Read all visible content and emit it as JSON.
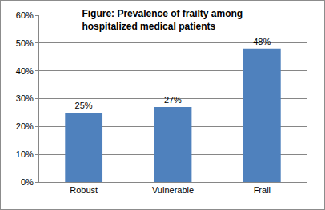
{
  "chart_data": {
    "type": "bar",
    "title": "Figure: Prevalence of frailty among\nhospitalized medical patients",
    "categories": [
      "Robust",
      "Vulnerable",
      "Frail"
    ],
    "values": [
      25,
      27,
      48
    ],
    "value_labels": [
      "25%",
      "27%",
      "48%"
    ],
    "color": "#4f81bd",
    "ylim": [
      0,
      60
    ],
    "yticks": [
      {
        "value": 0,
        "label": "0%"
      },
      {
        "value": 10,
        "label": "10%"
      },
      {
        "value": 20,
        "label": "20%"
      },
      {
        "value": 30,
        "label": "30%"
      },
      {
        "value": 40,
        "label": "40%"
      },
      {
        "value": 50,
        "label": "50%"
      },
      {
        "value": 60,
        "label": "60%"
      }
    ],
    "grid": true,
    "data_labels": true
  }
}
